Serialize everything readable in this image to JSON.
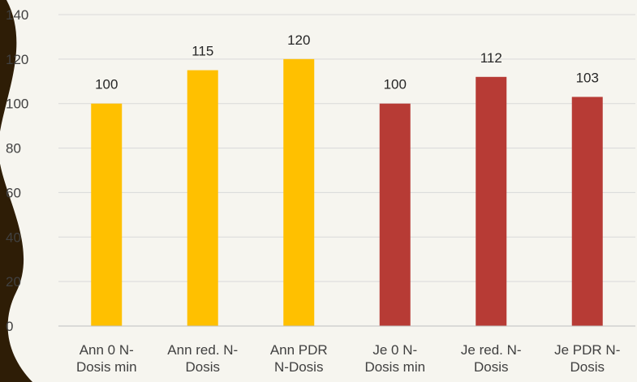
{
  "chart_data": {
    "type": "bar",
    "categories": [
      [
        "Ann 0 N-",
        "Dosis min"
      ],
      [
        "Ann red. N-",
        "Dosis"
      ],
      [
        "Ann PDR",
        "N-Dosis"
      ],
      [
        "Je 0 N-",
        "Dosis min"
      ],
      [
        "Je red. N-",
        "Dosis"
      ],
      [
        "Je PDR N-",
        "Dosis"
      ]
    ],
    "values": [
      100,
      115,
      120,
      100,
      112,
      103
    ],
    "data_labels": [
      "100",
      "115",
      "120",
      "100",
      "112",
      "103"
    ],
    "bar_colors": [
      "#ffc000",
      "#ffc000",
      "#ffc000",
      "#b73b35",
      "#b73b35",
      "#b73b35"
    ],
    "ylim": [
      0,
      140
    ],
    "yticks": [
      0,
      20,
      40,
      60,
      80,
      100,
      120,
      140
    ],
    "grid": true,
    "title": "",
    "xlabel": "",
    "ylabel": ""
  },
  "colors": {
    "background": "#f6f5ef",
    "decoration": "#2e1d06",
    "gridline": "#d9d9d9",
    "axis": "#bfbfbf"
  }
}
